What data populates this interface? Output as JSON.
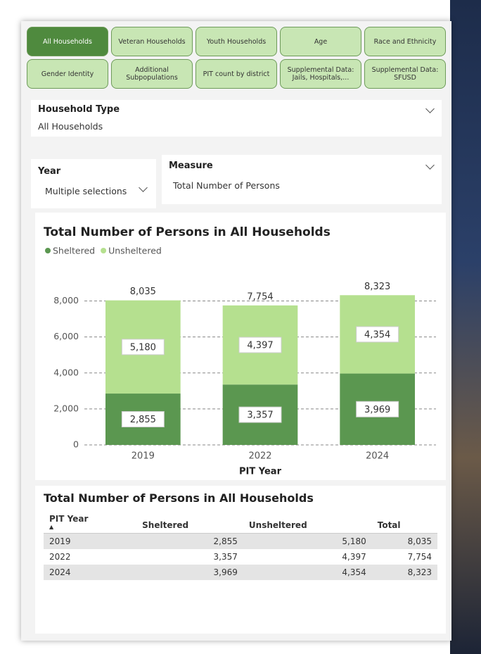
{
  "tabs": [
    {
      "label": "All Households",
      "selected": true
    },
    {
      "label": "Veteran Households",
      "selected": false
    },
    {
      "label": "Youth Households",
      "selected": false
    },
    {
      "label": "Age",
      "selected": false
    },
    {
      "label": "Race and Ethnicity",
      "selected": false
    },
    {
      "label": "Gender Identity",
      "selected": false
    },
    {
      "label": "Additional Subpopulations",
      "selected": false
    },
    {
      "label": "PIT count by district",
      "selected": false
    },
    {
      "label": "Supplemental Data: Jails, Hospitals,...",
      "selected": false
    },
    {
      "label": "Supplemental Data: SFUSD",
      "selected": false
    }
  ],
  "filters": {
    "household_type": {
      "label": "Household Type",
      "value": "All Households"
    },
    "year": {
      "label": "Year",
      "value": "Multiple selections"
    },
    "measure": {
      "label": "Measure",
      "value": "Total Number of Persons"
    }
  },
  "chart_data": {
    "type": "bar",
    "stacked": true,
    "title": "Total Number of Persons in All Households",
    "x_label": "PIT Year",
    "categories": [
      "2019",
      "2022",
      "2024"
    ],
    "series": [
      {
        "name": "Sheltered",
        "color": "#5b9750",
        "values": [
          2855,
          3357,
          3969
        ],
        "value_labels": [
          "2,855",
          "3,357",
          "3,969"
        ]
      },
      {
        "name": "Unsheltered",
        "color": "#b5e08f",
        "values": [
          5180,
          4397,
          4354
        ],
        "value_labels": [
          "5,180",
          "4,397",
          "4,354"
        ]
      }
    ],
    "totals": {
      "values": [
        8035,
        7754,
        8323
      ],
      "value_labels": [
        "8,035",
        "7,754",
        "8,323"
      ]
    },
    "ylim": [
      0,
      9000
    ],
    "yticks": [
      0,
      {
        "value": 2000,
        "label": "2,000"
      },
      {
        "value": 4000,
        "label": "4,000"
      },
      {
        "value": 6000,
        "label": "6,000"
      },
      {
        "value": 8000,
        "label": "8,000"
      }
    ],
    "grid": true,
    "legend": "top-left"
  },
  "table": {
    "title": "Total Number of Persons in All Households",
    "columns": [
      "PIT Year",
      "Sheltered",
      "Unsheltered",
      "Total"
    ],
    "rows": [
      [
        "2019",
        "2,855",
        "5,180",
        "8,035"
      ],
      [
        "2022",
        "3,357",
        "4,397",
        "7,754"
      ],
      [
        "2024",
        "3,969",
        "4,354",
        "8,323"
      ]
    ]
  }
}
